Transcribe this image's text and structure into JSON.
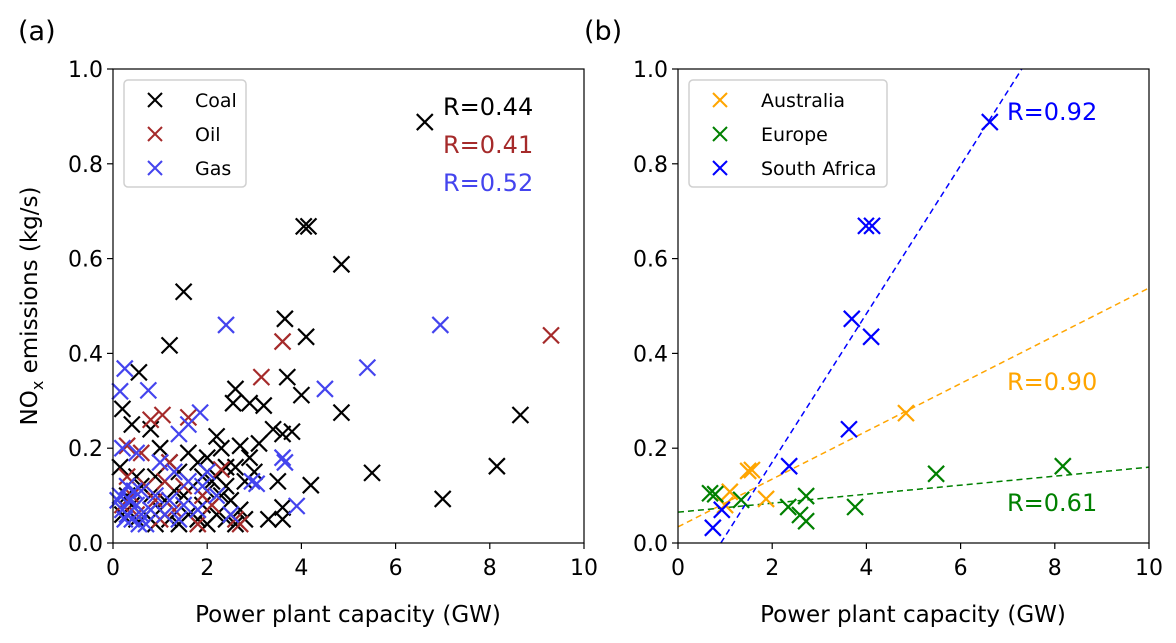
{
  "chart_data": [
    {
      "type": "scatter",
      "panel_label": "(a)",
      "title": "",
      "xlabel": "Power plant capacity (GW)",
      "ylabel": "NOx emissions (kg/s)",
      "ylabel_main": "NO",
      "ylabel_sub": "x",
      "ylabel_rest": " emissions (kg/s)",
      "xlim": [
        0,
        10
      ],
      "ylim": [
        0,
        1.0
      ],
      "xticks": [
        "0",
        "2",
        "4",
        "6",
        "8",
        "10"
      ],
      "yticks": [
        "0.0",
        "0.2",
        "0.4",
        "0.6",
        "0.8",
        "1.0"
      ],
      "grid": false,
      "legend_position": "top-left",
      "marker": "x",
      "series": [
        {
          "name": "Coal",
          "color": "#000000",
          "r_label": "R=0.44",
          "points": [
            [
              6.62,
              0.888
            ],
            [
              4.05,
              0.668
            ],
            [
              4.15,
              0.668
            ],
            [
              4.85,
              0.588
            ],
            [
              1.5,
              0.53
            ],
            [
              3.65,
              0.473
            ],
            [
              1.2,
              0.417
            ],
            [
              4.1,
              0.435
            ],
            [
              0.55,
              0.36
            ],
            [
              3.7,
              0.35
            ],
            [
              2.6,
              0.325
            ],
            [
              4.0,
              0.312
            ],
            [
              0.2,
              0.283
            ],
            [
              2.55,
              0.295
            ],
            [
              2.9,
              0.295
            ],
            [
              3.2,
              0.29
            ],
            [
              8.65,
              0.27
            ],
            [
              4.85,
              0.275
            ],
            [
              0.4,
              0.25
            ],
            [
              0.8,
              0.24
            ],
            [
              2.2,
              0.225
            ],
            [
              3.4,
              0.24
            ],
            [
              3.6,
              0.23
            ],
            [
              3.8,
              0.235
            ],
            [
              2.3,
              0.2
            ],
            [
              2.7,
              0.205
            ],
            [
              3.1,
              0.21
            ],
            [
              2.9,
              0.18
            ],
            [
              1.0,
              0.2
            ],
            [
              1.6,
              0.19
            ],
            [
              2.0,
              0.18
            ],
            [
              0.15,
              0.16
            ],
            [
              8.15,
              0.162
            ],
            [
              5.5,
              0.148
            ],
            [
              2.4,
              0.16
            ],
            [
              2.6,
              0.16
            ],
            [
              3.0,
              0.15
            ],
            [
              1.2,
              0.17
            ],
            [
              1.8,
              0.17
            ],
            [
              4.2,
              0.122
            ],
            [
              2.1,
              0.13
            ],
            [
              2.4,
              0.12
            ],
            [
              2.8,
              0.13
            ],
            [
              3.5,
              0.13
            ],
            [
              0.5,
              0.14
            ],
            [
              0.9,
              0.14
            ],
            [
              1.4,
              0.15
            ],
            [
              1.7,
              0.12
            ],
            [
              2.0,
              0.11
            ],
            [
              2.3,
              0.1
            ],
            [
              7.0,
              0.093
            ],
            [
              3.6,
              0.075
            ],
            [
              3.3,
              0.05
            ],
            [
              3.6,
              0.05
            ],
            [
              2.5,
              0.09
            ],
            [
              2.7,
              0.07
            ],
            [
              2.2,
              0.06
            ],
            [
              1.9,
              0.08
            ],
            [
              1.5,
              0.1
            ],
            [
              1.3,
              0.11
            ],
            [
              1.1,
              0.09
            ],
            [
              0.8,
              0.1
            ],
            [
              0.6,
              0.12
            ],
            [
              0.3,
              0.1
            ],
            [
              0.4,
              0.08
            ],
            [
              0.7,
              0.06
            ],
            [
              1.0,
              0.07
            ],
            [
              1.2,
              0.05
            ],
            [
              1.6,
              0.06
            ],
            [
              1.8,
              0.05
            ],
            [
              2.0,
              0.04
            ],
            [
              2.4,
              0.05
            ],
            [
              0.2,
              0.06
            ],
            [
              0.5,
              0.05
            ],
            [
              1.4,
              0.04
            ],
            [
              2.6,
              0.04
            ],
            [
              2.8,
              0.05
            ],
            [
              0.9,
              0.04
            ],
            [
              1.9,
              0.14
            ],
            [
              2.2,
              0.14
            ]
          ]
        },
        {
          "name": "Oil",
          "color": "#a52a2a",
          "r_label": "R=0.41",
          "points": [
            [
              9.3,
              0.438
            ],
            [
              3.6,
              0.425
            ],
            [
              3.15,
              0.35
            ],
            [
              1.05,
              0.27
            ],
            [
              0.8,
              0.26
            ],
            [
              1.6,
              0.265
            ],
            [
              0.3,
              0.205
            ],
            [
              0.6,
              0.19
            ],
            [
              1.2,
              0.17
            ],
            [
              2.3,
              0.155
            ],
            [
              1.5,
              0.12
            ],
            [
              1.9,
              0.1
            ],
            [
              2.1,
              0.08
            ],
            [
              0.4,
              0.1
            ],
            [
              0.9,
              0.09
            ],
            [
              1.3,
              0.07
            ],
            [
              2.6,
              0.05
            ],
            [
              0.2,
              0.08
            ],
            [
              0.5,
              0.06
            ],
            [
              1.0,
              0.05
            ],
            [
              1.8,
              0.04
            ],
            [
              2.7,
              0.04
            ],
            [
              0.7,
              0.12
            ],
            [
              1.1,
              0.13
            ],
            [
              0.3,
              0.14
            ]
          ]
        },
        {
          "name": "Gas",
          "color": "#4444ee",
          "r_label": "R=0.52",
          "points": [
            [
              6.95,
              0.46
            ],
            [
              2.4,
              0.46
            ],
            [
              0.25,
              0.368
            ],
            [
              5.4,
              0.37
            ],
            [
              4.5,
              0.325
            ],
            [
              0.15,
              0.32
            ],
            [
              0.75,
              0.322
            ],
            [
              1.85,
              0.275
            ],
            [
              1.6,
              0.25
            ],
            [
              1.4,
              0.23
            ],
            [
              0.2,
              0.2
            ],
            [
              3.6,
              0.18
            ],
            [
              3.65,
              0.17
            ],
            [
              2.95,
              0.13
            ],
            [
              3.05,
              0.125
            ],
            [
              3.9,
              0.078
            ],
            [
              0.5,
              0.19
            ],
            [
              1.0,
              0.17
            ],
            [
              1.3,
              0.15
            ],
            [
              1.9,
              0.12
            ],
            [
              2.2,
              0.1
            ],
            [
              0.3,
              0.12
            ],
            [
              0.6,
              0.11
            ],
            [
              0.9,
              0.1
            ],
            [
              1.2,
              0.09
            ],
            [
              1.5,
              0.08
            ],
            [
              1.8,
              0.07
            ],
            [
              2.5,
              0.06
            ],
            [
              0.1,
              0.09
            ],
            [
              0.2,
              0.07
            ],
            [
              0.3,
              0.06
            ],
            [
              0.4,
              0.05
            ],
            [
              0.5,
              0.08
            ],
            [
              0.6,
              0.06
            ],
            [
              0.7,
              0.04
            ],
            [
              0.8,
              0.07
            ],
            [
              1.1,
              0.06
            ],
            [
              1.4,
              0.05
            ],
            [
              0.15,
              0.1
            ],
            [
              0.35,
              0.09
            ],
            [
              0.45,
              0.11
            ],
            [
              0.25,
              0.05
            ],
            [
              0.55,
              0.04
            ],
            [
              1.6,
              0.13
            ],
            [
              2.0,
              0.15
            ]
          ]
        }
      ]
    },
    {
      "type": "scatter",
      "panel_label": "(b)",
      "title": "",
      "xlabel": "Power plant capacity (GW)",
      "ylabel": "",
      "xlim": [
        0,
        10
      ],
      "ylim": [
        0,
        1.0
      ],
      "xticks": [
        "0",
        "2",
        "4",
        "6",
        "8",
        "10"
      ],
      "yticks": [
        "0.0",
        "0.2",
        "0.4",
        "0.6",
        "0.8",
        "1.0"
      ],
      "grid": false,
      "legend_position": "top-left",
      "marker": "x",
      "series": [
        {
          "name": "Australia",
          "color": "#ffa500",
          "r_label": "R=0.90",
          "points": [
            [
              1.49,
              0.152
            ],
            [
              1.57,
              0.154
            ],
            [
              1.87,
              0.093
            ],
            [
              4.84,
              0.274
            ],
            [
              1.1,
              0.108
            ],
            [
              1.0,
              0.08
            ]
          ],
          "fit_line": {
            "intercept": 0.034,
            "slope": 0.0504
          }
        },
        {
          "name": "Europe",
          "color": "#008000",
          "r_label": "R=0.61",
          "points": [
            [
              0.68,
              0.105
            ],
            [
              0.79,
              0.103
            ],
            [
              1.34,
              0.091
            ],
            [
              2.34,
              0.076
            ],
            [
              2.59,
              0.059
            ],
            [
              2.72,
              0.046
            ],
            [
              2.72,
              0.099
            ],
            [
              3.76,
              0.076
            ],
            [
              5.48,
              0.146
            ],
            [
              8.17,
              0.162
            ]
          ],
          "fit_line": {
            "intercept": 0.065,
            "slope": 0.0095
          }
        },
        {
          "name": "South Africa",
          "color": "#0000ff",
          "r_label": "R=0.92",
          "points": [
            [
              0.74,
              0.032
            ],
            [
              0.93,
              0.07
            ],
            [
              2.36,
              0.162
            ],
            [
              3.63,
              0.24
            ],
            [
              3.69,
              0.473
            ],
            [
              4.1,
              0.435
            ],
            [
              3.99,
              0.669
            ],
            [
              4.12,
              0.669
            ],
            [
              6.62,
              0.888
            ]
          ],
          "fit_line": {
            "intercept": -0.1424,
            "slope": 0.1565
          }
        }
      ]
    }
  ]
}
